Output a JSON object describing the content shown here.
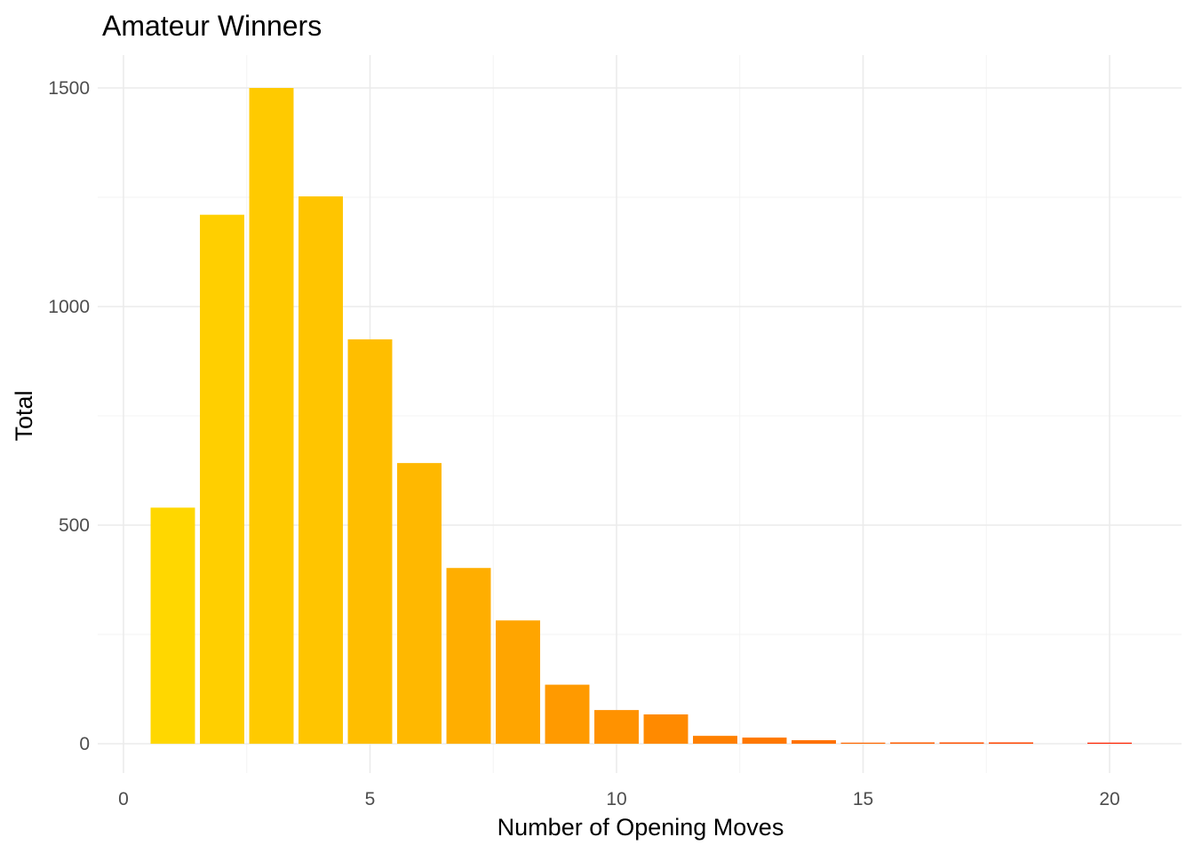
{
  "chart_data": {
    "type": "bar",
    "title": "Amateur Winners",
    "xlabel": "Number of Opening Moves",
    "ylabel": "Total",
    "x": [
      1,
      2,
      3,
      4,
      5,
      6,
      7,
      8,
      9,
      10,
      11,
      12,
      13,
      14,
      15,
      16,
      17,
      18,
      20
    ],
    "values": [
      540,
      1210,
      1500,
      1252,
      925,
      642,
      402,
      282,
      135,
      77,
      67,
      18,
      14,
      8,
      2,
      3,
      3,
      3,
      2
    ],
    "colors": [
      "#FFD700",
      "#FFCF00",
      "#FFCA00",
      "#FFC500",
      "#FFBE00",
      "#FFB800",
      "#FFAE00",
      "#FFA500",
      "#FF9A00",
      "#FF9200",
      "#FF8A00",
      "#FF8000",
      "#FF7800",
      "#FF7000",
      "#FF6600",
      "#FF5C00",
      "#FF5000",
      "#FF4400",
      "#FF2200"
    ],
    "xlim": [
      0,
      21
    ],
    "ylim": [
      0,
      1570
    ],
    "xticks": [
      0,
      5,
      10,
      15,
      20
    ],
    "yticks": [
      0,
      500,
      1000,
      1500
    ],
    "x_tick_labels": [
      "0",
      "5",
      "10",
      "15",
      "20"
    ],
    "y_tick_labels": [
      "0",
      "500",
      "1000",
      "1500"
    ],
    "grid": true,
    "legend": "none"
  }
}
